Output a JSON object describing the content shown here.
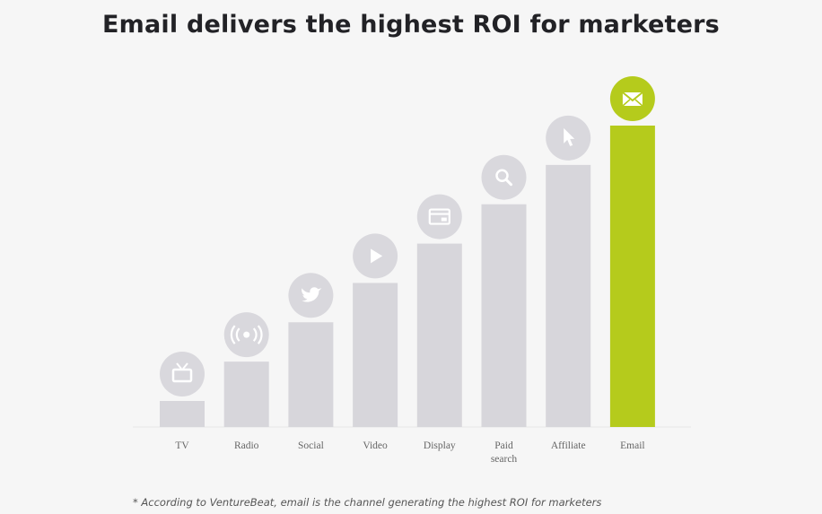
{
  "title": "Email delivers the highest ROI for marketers",
  "footnote": "* According to VentureBeat, email is the channel generating the highest ROI for marketers",
  "colors": {
    "bar": "#d7d6db",
    "highlight": "#b5cb1c",
    "icon_circle": "#d9d8dd",
    "icon_glyph": "#ffffff",
    "background": "#f6f6f6"
  },
  "chart_data": {
    "type": "bar",
    "title": "Email delivers the highest ROI for marketers",
    "xlabel": "",
    "ylabel": "",
    "grid": false,
    "categories": [
      "TV",
      "Radio",
      "Social",
      "Video",
      "Display",
      "Paid search",
      "Affiliate",
      "Email"
    ],
    "category_lines": [
      [
        "TV"
      ],
      [
        "Radio"
      ],
      [
        "Social"
      ],
      [
        "Video"
      ],
      [
        "Display"
      ],
      [
        "Paid",
        "search"
      ],
      [
        "Affiliate"
      ],
      [
        "Email"
      ]
    ],
    "icons": [
      "tv-icon",
      "radio-broadcast-icon",
      "twitter-bird-icon",
      "play-icon",
      "browser-window-icon",
      "search-icon",
      "cursor-pointer-icon",
      "envelope-icon"
    ],
    "values": [
      1,
      2,
      3,
      4,
      5,
      6,
      7,
      8
    ],
    "highlight_index": 7,
    "ylim": [
      0,
      8
    ],
    "value_note": "Relative ranking; bars step up evenly, no numeric axis shown"
  }
}
